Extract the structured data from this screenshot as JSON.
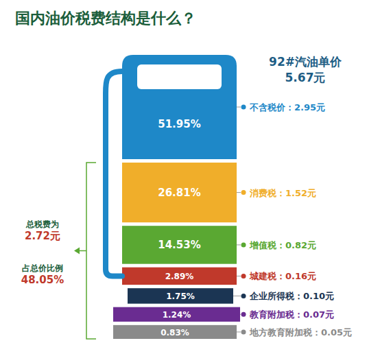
{
  "chart_data": {
    "type": "bar",
    "stacked": true,
    "data_labels": true,
    "tick_labels": false,
    "title": "国内油价税费结构是什么？",
    "annotations": [
      "92#汽油单价",
      "5.67元",
      "总税费为",
      "2.72元",
      "占总价比例",
      "48.05%"
    ],
    "series": [
      {
        "name": "不含税价：2.95元",
        "color": "#1e88c8",
        "values": [
          51.95
        ],
        "value_labels": [
          "51.95%"
        ]
      },
      {
        "name": "消费税：1.52元",
        "color": "#f0ae2a",
        "values": [
          26.81
        ],
        "value_labels": [
          "26.81%"
        ]
      },
      {
        "name": "增值税：0.82元",
        "color": "#5aa832",
        "values": [
          14.53
        ],
        "value_labels": [
          "14.53%"
        ]
      },
      {
        "name": "城建税：0.16元",
        "color": "#c0392b",
        "values": [
          2.89
        ],
        "value_labels": [
          "2.89%"
        ]
      },
      {
        "name": "企业所得税：0.10元",
        "color": "#1b3553",
        "values": [
          1.75
        ],
        "value_labels": [
          "1.75%"
        ]
      },
      {
        "name": "教育附加税：0.07元",
        "color": "#6a2c91",
        "values": [
          1.24
        ],
        "value_labels": [
          "1.24%"
        ]
      },
      {
        "name": "地方教育附加税：0.05元",
        "color": "#8a8a8a",
        "values": [
          0.83
        ],
        "value_labels": [
          "0.83%"
        ]
      }
    ]
  }
}
